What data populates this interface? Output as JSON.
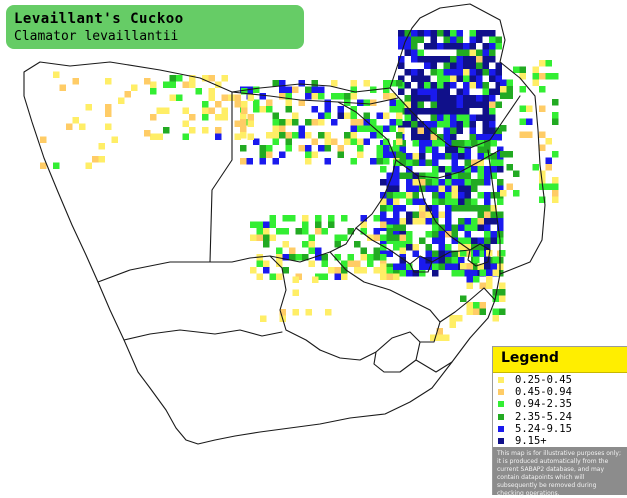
{
  "title": {
    "common_name": "Levaillant's Cuckoo",
    "scientific_name": "Clamator levaillantii"
  },
  "legend": {
    "title": "Legend",
    "items": [
      {
        "label": "0.25-0.45",
        "color": "#ffee66"
      },
      {
        "label": "0.45-0.94",
        "color": "#ffcc66"
      },
      {
        "label": "0.94-2.35",
        "color": "#33ee33"
      },
      {
        "label": "2.35-5.24",
        "color": "#22aa22"
      },
      {
        "label": "5.24-9.15",
        "color": "#1a1aee"
      },
      {
        "label": "9.15+",
        "color": "#10108a"
      }
    ],
    "note": "This map is for illustrative purposes only; it is produced automatically from the current SABAP2 database, and may contain datapoints which will subsequently be removed during checking operations."
  },
  "map_colors": {
    "background": "#ffffff",
    "border": "#1a1a1a"
  },
  "map_icons": [
    "southern-africa-outline",
    "country-borders",
    "province-borders",
    "distribution-grid"
  ]
}
